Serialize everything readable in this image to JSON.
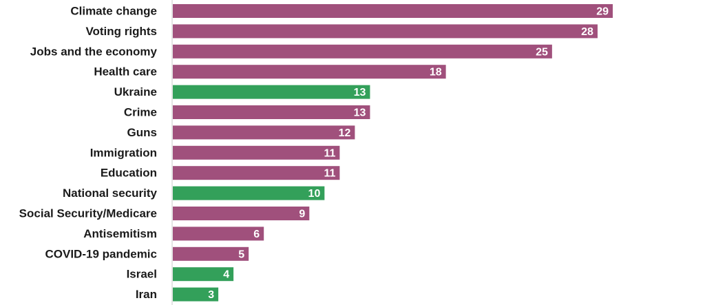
{
  "chart_data": {
    "type": "bar",
    "orientation": "horizontal",
    "categories": [
      "Climate change",
      "Voting rights",
      "Jobs and the economy",
      "Health care",
      "Ukraine",
      "Crime",
      "Guns",
      "Immigration",
      "Education",
      "National security",
      "Social Security/Medicare",
      "Antisemitism",
      "COVID-19 pandemic",
      "Israel",
      "Iran"
    ],
    "values": [
      29,
      28,
      25,
      18,
      13,
      13,
      12,
      11,
      11,
      10,
      9,
      6,
      5,
      4,
      3
    ],
    "highlight": [
      false,
      false,
      false,
      false,
      true,
      false,
      false,
      false,
      false,
      true,
      false,
      false,
      false,
      true,
      true
    ],
    "colors": {
      "default": "#a0507c",
      "highlight": "#33a05a",
      "axis": "#c8c8c8"
    },
    "xlim": [
      0,
      29
    ],
    "grid": false,
    "legend": "none"
  }
}
